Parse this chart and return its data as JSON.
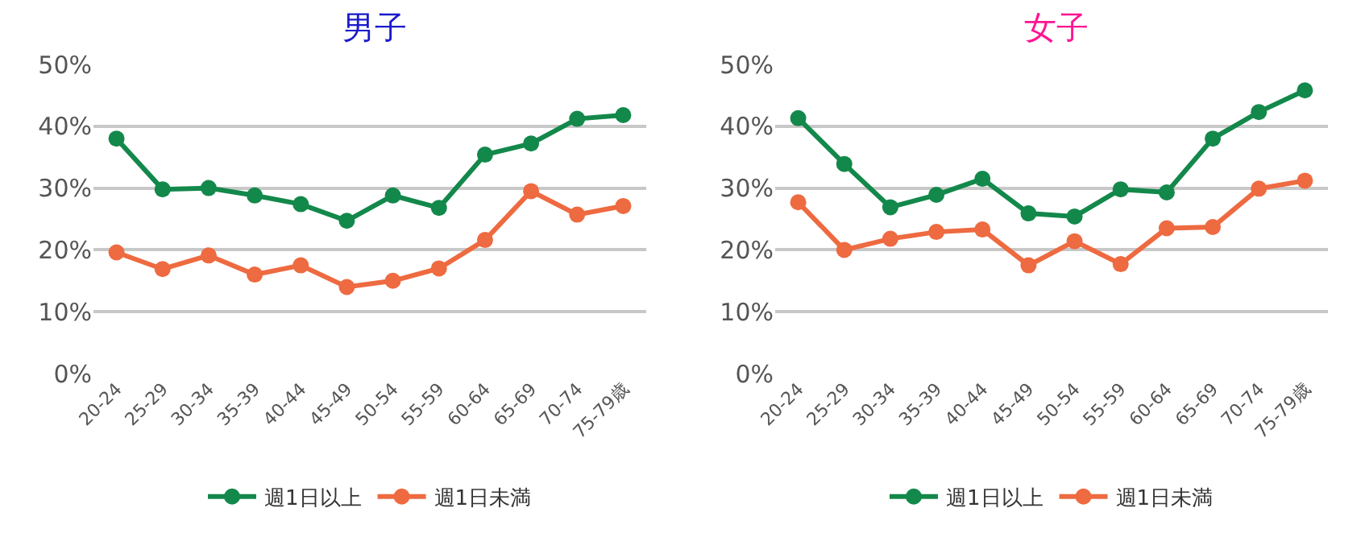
{
  "chart_data": [
    {
      "type": "line",
      "title": "男子",
      "categories": [
        "20-24",
        "25-29",
        "30-34",
        "35-39",
        "40-44",
        "45-49",
        "50-54",
        "55-59",
        "60-64",
        "65-69",
        "70-74",
        "75-79歳"
      ],
      "series": [
        {
          "name": "週1日以上",
          "color": "#13884b",
          "values": [
            38,
            29.8,
            30,
            28.8,
            27.4,
            24.7,
            28.8,
            26.8,
            35.4,
            37.2,
            41.2,
            41.8
          ]
        },
        {
          "name": "週1日未満",
          "color": "#ee6a40",
          "values": [
            19.6,
            16.9,
            19.1,
            16,
            17.5,
            14,
            15,
            17,
            21.6,
            29.5,
            25.7,
            27.1
          ]
        }
      ],
      "ylim": [
        0,
        50
      ],
      "yticks": [
        {
          "value": 0,
          "label": "0%"
        },
        {
          "value": 10,
          "label": "10%"
        },
        {
          "value": 20,
          "label": "20%"
        },
        {
          "value": 30,
          "label": "30%"
        },
        {
          "value": 40,
          "label": "40%"
        },
        {
          "value": 50,
          "label": "50%"
        }
      ],
      "grid": "y",
      "legend": "bottom",
      "marker": "circle",
      "line_style": "solid"
    },
    {
      "type": "line",
      "title": "女子",
      "categories": [
        "20-24",
        "25-29",
        "30-34",
        "35-39",
        "40-44",
        "45-49",
        "50-54",
        "55-59",
        "60-64",
        "65-69",
        "70-74",
        "75-79歳"
      ],
      "series": [
        {
          "name": "週1日以上",
          "color": "#13884b",
          "values": [
            41.3,
            33.9,
            26.9,
            28.9,
            31.5,
            25.9,
            25.4,
            29.8,
            29.3,
            38,
            42.3,
            45.8
          ]
        },
        {
          "name": "週1日未満",
          "color": "#ee6a40",
          "values": [
            27.7,
            20,
            21.8,
            22.9,
            23.3,
            17.5,
            21.4,
            17.7,
            23.5,
            23.7,
            29.9,
            31.2
          ]
        }
      ],
      "ylim": [
        0,
        50
      ],
      "yticks": [
        {
          "value": 0,
          "label": "0%"
        },
        {
          "value": 10,
          "label": "10%"
        },
        {
          "value": 20,
          "label": "20%"
        },
        {
          "value": 30,
          "label": "30%"
        },
        {
          "value": 40,
          "label": "40%"
        },
        {
          "value": 50,
          "label": "50%"
        }
      ],
      "grid": "y",
      "legend": "bottom",
      "marker": "circle",
      "line_style": "solid"
    }
  ]
}
